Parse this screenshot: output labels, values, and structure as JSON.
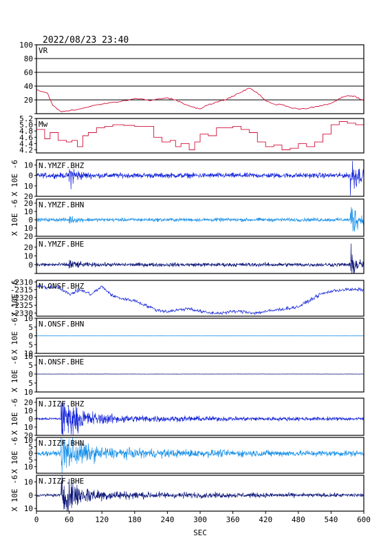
{
  "header": {
    "timestamp": "2022/08/23 23:40"
  },
  "chart_data": {
    "type": "line",
    "xlabel": "SEC",
    "xlim": [
      0,
      600
    ],
    "x_ticks": [
      0,
      60,
      120,
      180,
      240,
      300,
      360,
      420,
      480,
      540,
      600
    ],
    "panels": [
      {
        "label": "VR",
        "ylabel": "",
        "ylim": [
          0,
          100
        ],
        "yticks": [
          0,
          20,
          40,
          60,
          80,
          100
        ],
        "ytick_labels": [
          "",
          "20",
          "40",
          "60",
          "80",
          "100"
        ],
        "grid": true,
        "color": "#d0103a",
        "kind": "line",
        "x": [
          0,
          20,
          30,
          45,
          60,
          75,
          90,
          105,
          120,
          135,
          150,
          165,
          180,
          195,
          210,
          225,
          240,
          255,
          270,
          285,
          300,
          315,
          330,
          345,
          360,
          375,
          390,
          405,
          420,
          435,
          450,
          465,
          480,
          495,
          510,
          525,
          540,
          555,
          570,
          585,
          600
        ],
        "y": [
          35,
          30,
          12,
          3,
          4,
          6,
          9,
          12,
          14,
          16,
          17,
          19,
          22,
          21,
          19,
          22,
          23,
          20,
          14,
          10,
          7,
          13,
          17,
          20,
          25,
          31,
          37,
          30,
          19,
          14,
          13,
          9,
          7,
          7,
          10,
          12,
          15,
          22,
          26,
          25,
          19
        ]
      },
      {
        "label": "Mw",
        "ylabel": "",
        "ylim": [
          4.1,
          5.2
        ],
        "yticks": [
          4.2,
          4.4,
          4.6,
          4.8,
          5.0,
          5.2
        ],
        "ytick_labels": [
          "4.2",
          "4.4",
          "4.6",
          "4.8",
          "5.0",
          "5.2"
        ],
        "grid": false,
        "color": "#d0103a",
        "kind": "step",
        "x": [
          0,
          15,
          25,
          40,
          55,
          65,
          75,
          85,
          95,
          110,
          125,
          140,
          160,
          180,
          200,
          215,
          230,
          245,
          255,
          265,
          280,
          290,
          300,
          315,
          330,
          345,
          360,
          375,
          390,
          405,
          420,
          435,
          450,
          465,
          480,
          495,
          510,
          525,
          540,
          555,
          570,
          585,
          600
        ],
        "y": [
          4.85,
          4.55,
          4.75,
          4.5,
          4.45,
          4.5,
          4.3,
          4.65,
          4.75,
          4.9,
          4.95,
          5.0,
          4.98,
          4.95,
          4.95,
          4.6,
          4.45,
          4.5,
          4.3,
          4.4,
          4.2,
          4.45,
          4.7,
          4.65,
          4.9,
          4.9,
          4.95,
          4.85,
          4.75,
          4.45,
          4.3,
          4.35,
          4.2,
          4.25,
          4.4,
          4.3,
          4.45,
          4.7,
          5.0,
          5.1,
          5.05,
          5.0,
          4.9
        ]
      },
      {
        "label": "N.YMZF.BHZ",
        "ylabel": "X 10E -6",
        "ylim": [
          -20,
          15
        ],
        "yticks": [
          -20,
          -10,
          0,
          10
        ],
        "ytick_labels": [
          "20",
          "10",
          "0",
          "10"
        ],
        "grid": false,
        "color": "#1020d8",
        "kind": "seismic",
        "base": 0,
        "arrivals": [
          {
            "t": 60,
            "amp": 10
          },
          {
            "t": 575,
            "amp": 20
          }
        ],
        "noise": 2,
        "long_coda": false
      },
      {
        "label": "N.YMZF.BHN",
        "ylabel": "X 10E -6",
        "ylim": [
          -20,
          25
        ],
        "yticks": [
          -20,
          -10,
          0,
          10,
          20
        ],
        "ytick_labels": [
          "20",
          "10",
          "0",
          "10",
          "20"
        ],
        "grid": false,
        "color": "#1890e8",
        "kind": "seismic",
        "base": 0,
        "arrivals": [
          {
            "t": 60,
            "amp": 3
          },
          {
            "t": 575,
            "amp": 22
          }
        ],
        "noise": 1.8,
        "long_coda": false
      },
      {
        "label": "N.YMZF.BHE",
        "ylabel": "",
        "ylim": [
          -10,
          30
        ],
        "yticks": [
          -10,
          0,
          10,
          20
        ],
        "ytick_labels": [
          "",
          "0",
          "10",
          "20"
        ],
        "grid": false,
        "color": "#0a1478",
        "kind": "seismic",
        "base": 0,
        "arrivals": [
          {
            "t": 60,
            "amp": 5
          },
          {
            "t": 575,
            "amp": 16
          }
        ],
        "noise": 1.8,
        "long_coda": false
      },
      {
        "label": "N.ONSF.BHZ",
        "ylabel": "X 10E -6",
        "ylim": [
          -2332,
          -2309
        ],
        "yticks": [
          -2330,
          -2325,
          -2320,
          -2315,
          -2310
        ],
        "ytick_labels": [
          "-2330",
          "-2325",
          "-2320",
          "-2315",
          "-2310"
        ],
        "grid": false,
        "color": "#1020d8",
        "kind": "drift",
        "x": [
          0,
          20,
          40,
          60,
          80,
          100,
          120,
          140,
          160,
          180,
          200,
          220,
          240,
          260,
          280,
          300,
          320,
          340,
          360,
          380,
          400,
          420,
          440,
          460,
          480,
          500,
          520,
          540,
          560,
          580,
          600
        ],
        "y": [
          -2313,
          -2313.5,
          -2313,
          -2318,
          -2315,
          -2318,
          -2313,
          -2319,
          -2321,
          -2322,
          -2325,
          -2328,
          -2329,
          -2328,
          -2327,
          -2329,
          -2330,
          -2330,
          -2329,
          -2329,
          -2330,
          -2329,
          -2328,
          -2327,
          -2326,
          -2322,
          -2318,
          -2316,
          -2315,
          -2315,
          -2315
        ],
        "noise": 0.9
      },
      {
        "label": "N.ONSF.BHN",
        "ylabel": "X 10E -6",
        "ylim": [
          -10,
          10
        ],
        "yticks": [
          -10,
          -5,
          0,
          5,
          10
        ],
        "ytick_labels": [
          "10",
          "5",
          "0",
          "5",
          "10"
        ],
        "grid": false,
        "color": "#1890e8",
        "kind": "seismic",
        "base": 0,
        "arrivals": [],
        "noise": 0.08,
        "long_coda": false
      },
      {
        "label": "N.ONSF.BHE",
        "ylabel": "X 10E -6",
        "ylim": [
          -10,
          10
        ],
        "yticks": [
          -10,
          -5,
          0,
          5,
          10
        ],
        "ytick_labels": [
          "10",
          "5",
          "0",
          "5",
          "10"
        ],
        "grid": false,
        "color": "#0a1478",
        "kind": "seismic",
        "base": 0,
        "arrivals": [],
        "noise": 0.08,
        "long_coda": false
      },
      {
        "label": "N.JIZF.BHZ",
        "ylabel": "X 10E -6",
        "ylim": [
          -20,
          25
        ],
        "yticks": [
          -20,
          -10,
          0,
          10,
          20
        ],
        "ytick_labels": [
          "20",
          "10",
          "0",
          "10",
          "20"
        ],
        "grid": false,
        "color": "#1020d8",
        "kind": "seismic",
        "base": 0,
        "arrivals": [
          {
            "t": 45,
            "amp": 20
          }
        ],
        "noise": 1.2,
        "long_coda": true
      },
      {
        "label": "N.JIZF.BHN",
        "ylabel": "X 10E -6",
        "ylim": [
          -15,
          12
        ],
        "yticks": [
          -10,
          -5,
          0,
          5,
          10
        ],
        "ytick_labels": [
          "10",
          "5",
          "0",
          "5",
          "10"
        ],
        "grid": false,
        "color": "#1890e8",
        "kind": "seismic",
        "base": 0,
        "arrivals": [
          {
            "t": 45,
            "amp": 12
          }
        ],
        "noise": 1.5,
        "long_coda": true
      },
      {
        "label": "N.JIZF.BHE",
        "ylabel": "X 10E -6",
        "ylim": [
          -12,
          15
        ],
        "yticks": [
          -10,
          0,
          10
        ],
        "ytick_labels": [
          "10",
          "0",
          "10"
        ],
        "grid": false,
        "color": "#0a1478",
        "kind": "seismic",
        "base": 0,
        "arrivals": [
          {
            "t": 45,
            "amp": 12
          }
        ],
        "noise": 0.9,
        "long_coda": true
      }
    ]
  }
}
